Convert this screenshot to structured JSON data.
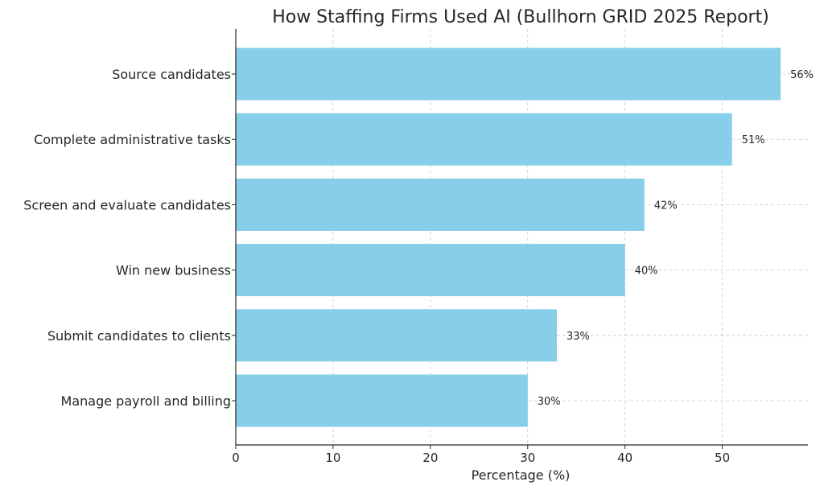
{
  "chart_data": {
    "type": "bar",
    "orientation": "horizontal",
    "title": "How Staffing Firms Used AI (Bullhorn GRID 2025 Report)",
    "xlabel": "Percentage (%)",
    "ylabel": "",
    "categories": [
      "Source candidates",
      "Complete administrative tasks",
      "Screen and evaluate candidates",
      "Win new business",
      "Submit candidates to clients",
      "Manage payroll and billing"
    ],
    "values": [
      56,
      51,
      42,
      40,
      33,
      30
    ],
    "value_labels": [
      "56%",
      "51%",
      "42%",
      "40%",
      "33%",
      "30%"
    ],
    "xlim": [
      0,
      58.8
    ],
    "xticks": [
      0,
      10,
      20,
      30,
      40,
      50
    ],
    "grid": true,
    "bar_color": "#87ceeb"
  }
}
